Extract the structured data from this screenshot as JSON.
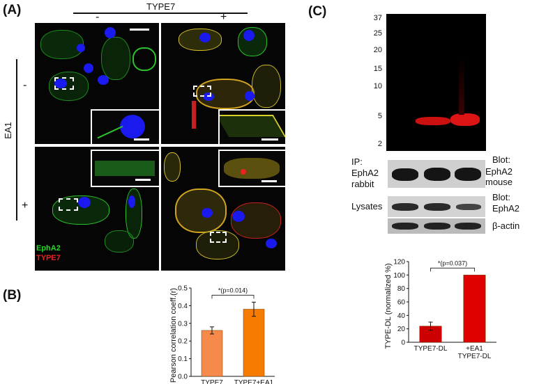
{
  "panelA": {
    "letter": "(A)",
    "type7_label": "TYPE7",
    "type7_minus": "-",
    "type7_plus": "+",
    "ea1_label": "EA1",
    "ea1_minus": "-",
    "ea1_plus": "+",
    "legend_epha2": "EphA2",
    "legend_type7": "TYPE7",
    "colors": {
      "epha2": "#22dd22",
      "type7": "#ee2222",
      "nucleus": "#1a1aee"
    }
  },
  "panelB": {
    "letter": "(B)",
    "chart_data": {
      "type": "bar",
      "categories": [
        "TYPE7",
        "TYPE7+EA1"
      ],
      "values": [
        0.26,
        0.38
      ],
      "errors": [
        0.02,
        0.04
      ],
      "ylabel": "Pearson correlation coeff.(r)",
      "ylim": [
        0.0,
        0.5
      ],
      "yticks": [
        "0.0",
        "0.1",
        "0.2",
        "0.3",
        "0.4",
        "0.5"
      ],
      "annotation": "*(p=0.014)",
      "colors": [
        "#f58a4a",
        "#f57c00"
      ]
    }
  },
  "panelC": {
    "letter": "(C)",
    "mw_ladder": [
      "37",
      "25",
      "20",
      "15",
      "10",
      "5",
      "2"
    ],
    "ip_label": "IP:",
    "ip_line2": "EphA2",
    "ip_line3": "rabbit",
    "blot1_label_1": "Blot:",
    "blot1_label_2": "EphA2 mouse",
    "lysates_label": "Lysates",
    "blot2_label_1": "Blot:",
    "blot2_label_2": "EphA2",
    "actin_label": "β-actin",
    "chart_data": {
      "type": "bar",
      "categories": [
        "TYPE7-DL",
        "+EA1 TYPE7-DL"
      ],
      "category_lines": [
        [
          "TYPE7-DL"
        ],
        [
          "+EA1",
          "TYPE7-DL"
        ]
      ],
      "values": [
        24,
        100
      ],
      "errors": [
        6,
        0
      ],
      "ylabel": "TYPE-DL (normalized %)",
      "ylim": [
        0,
        120
      ],
      "yticks": [
        "0",
        "20",
        "40",
        "60",
        "80",
        "100",
        "120"
      ],
      "annotation": "*(p=0.037)",
      "colors": [
        "#cc0000",
        "#e00000"
      ]
    }
  }
}
